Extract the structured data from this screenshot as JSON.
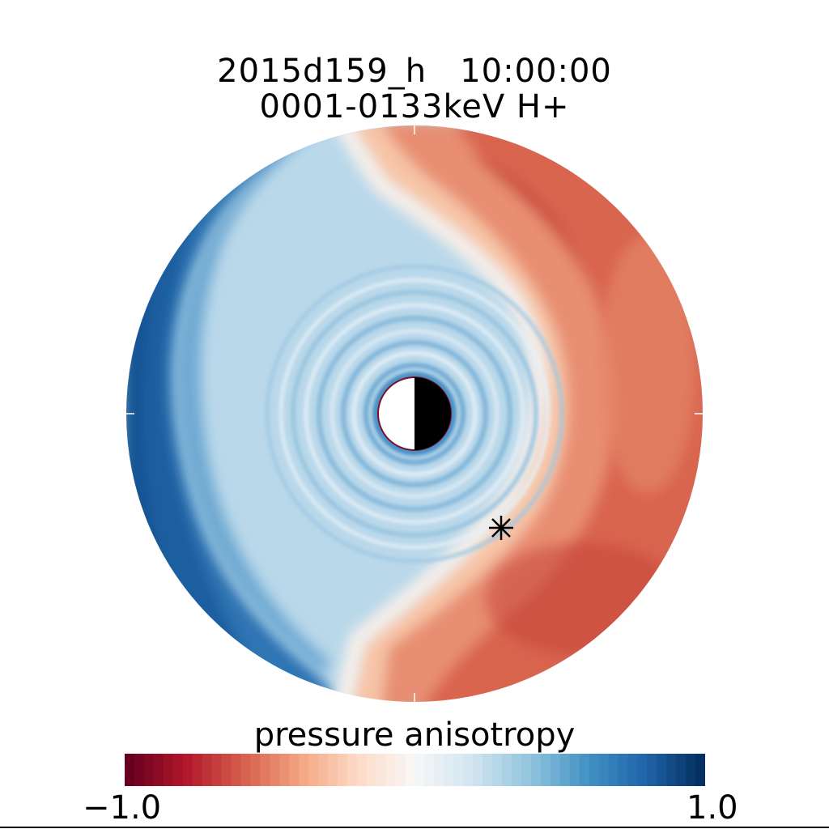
{
  "header": {
    "title_line1": "2015d159_h   10:00:00",
    "title_line2": "0001-0133keV H+"
  },
  "colorbar": {
    "label": "pressure anisotropy",
    "min_label": "-1.0",
    "max_label": "1.0",
    "min": -1.0,
    "max": 1.0,
    "colors": [
      "#67001f",
      "#b2182b",
      "#d6604d",
      "#f4a582",
      "#fddbc7",
      "#f7f7f7",
      "#d1e5f0",
      "#92c5de",
      "#4393c3",
      "#2166ac",
      "#053061"
    ]
  },
  "chart_data": {
    "type": "heatmap",
    "title": "2015d159_h   10:00:00",
    "subtitle": "0001-0133keV H+",
    "colorbar_label": "pressure anisotropy",
    "value_range": [
      -1.0,
      1.0
    ],
    "colormap": "diverging red-white-blue",
    "grid": false,
    "description_of_field": {
      "dusk_left_side": "strong positive (blue, ~0.6 to 0.9)",
      "inner_region": "weak positive (light blue, ~0.2 to 0.4) with concentric ring structure",
      "dawn_right_side": "negative (red, ~-0.4 to -0.6)",
      "transition_band": "near zero (white) S-shaped boundary"
    },
    "markers": [
      {
        "type": "asterisk",
        "symbol": "*"
      }
    ],
    "central_body": "planet disk, day side white, night side black"
  },
  "marker_glyph": "✳"
}
